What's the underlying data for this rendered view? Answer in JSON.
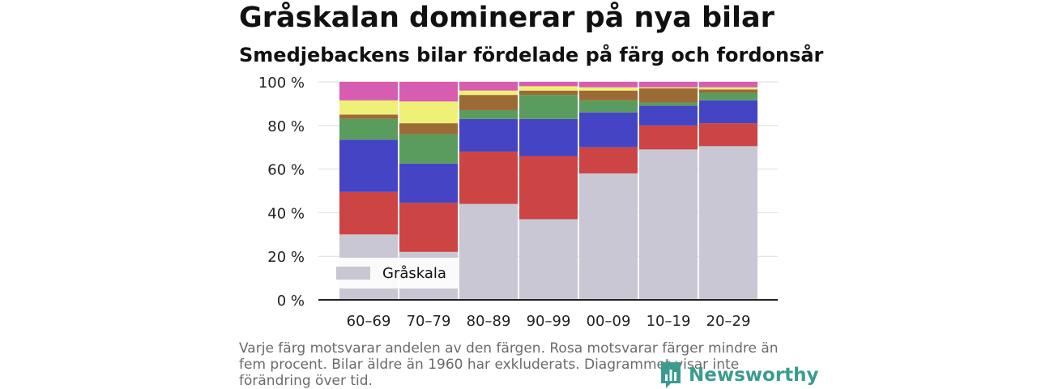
{
  "header": {
    "title": "Gråskalan dominerar på nya bilar",
    "subtitle": "Smedjebackens bilar fördelade på färg och fordonsår"
  },
  "chart_data": {
    "type": "bar",
    "stacked": true,
    "normalized": true,
    "categories": [
      "60–69",
      "70–79",
      "80–89",
      "90–99",
      "00–09",
      "10–19",
      "20–29"
    ],
    "ylim": [
      0,
      100
    ],
    "y_ticks": [
      0,
      20,
      40,
      60,
      80,
      100
    ],
    "y_tick_labels": [
      "0 %",
      "20 %",
      "40 %",
      "60 %",
      "80 %",
      "100 %"
    ],
    "grid": true,
    "legend_position": "bottom-left",
    "series": [
      {
        "name": "Gråskala",
        "color": "#c8c7d3",
        "values": [
          30,
          22,
          44,
          37,
          58,
          69,
          70.5
        ]
      },
      {
        "color": "#cc4444",
        "values": [
          19.5,
          22.5,
          24,
          29,
          12,
          11,
          10.5
        ]
      },
      {
        "color": "#4444c4",
        "values": [
          24,
          18,
          15,
          17,
          16,
          9,
          10.5
        ]
      },
      {
        "color": "#5a9c5e",
        "values": [
          9.5,
          13.5,
          4,
          11,
          5.5,
          1.5,
          3.5
        ]
      },
      {
        "color": "#9c6a34",
        "values": [
          2,
          5,
          7,
          2,
          4.5,
          6.5,
          1.5
        ]
      },
      {
        "color": "#eef077",
        "values": [
          6.5,
          10,
          2,
          2,
          1.5,
          0.5,
          1
        ]
      },
      {
        "color": "#d65db0",
        "values": [
          8.5,
          9,
          4,
          2,
          2.5,
          2.5,
          2.5
        ]
      }
    ]
  },
  "footnote": "Varje färg motsvarar andelen av den färgen. Rosa motsvarar färger mindre än fem procent. Bilar äldre än 1960 har exkluderats. Diagrammet visar inte förändring över tid.",
  "brand": {
    "name": "Newsworthy",
    "color": "#3a9c8f",
    "icon": "bar-chart-logo-icon"
  }
}
